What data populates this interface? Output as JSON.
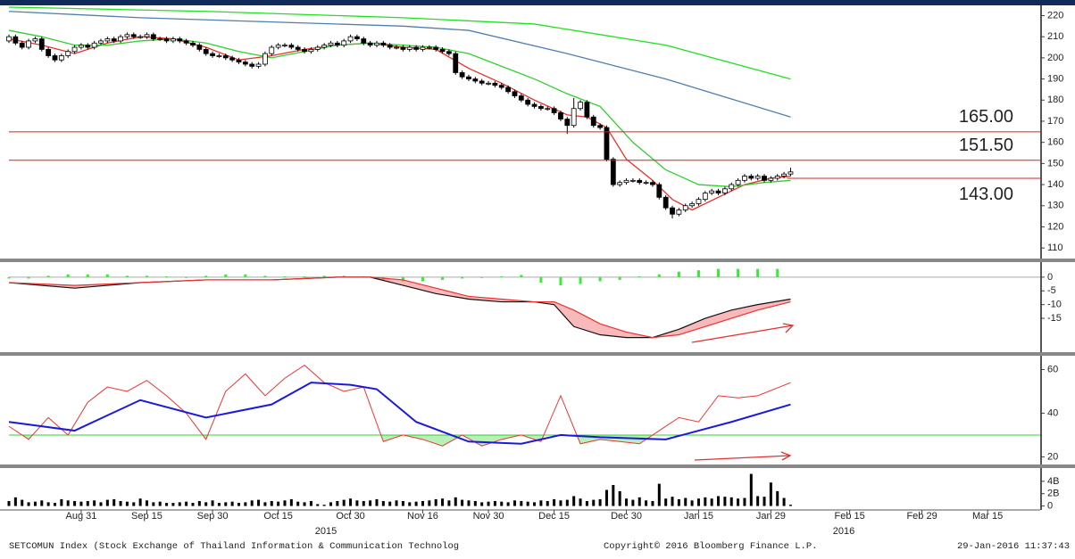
{
  "chart_data": [
    {
      "type": "candlestick",
      "color": "#000000",
      "xlim": [
        0,
        157
      ],
      "xticks": [
        {
          "value": 11,
          "label": "Aug 31"
        },
        {
          "value": 21,
          "label": "Sep 15"
        },
        {
          "value": 31,
          "label": "Sep 30"
        },
        {
          "value": 41,
          "label": "Oct 15"
        },
        {
          "value": 52,
          "label": "Oct 30"
        },
        {
          "value": 63,
          "label": "Nov 16"
        },
        {
          "value": 73,
          "label": "Nov 30"
        },
        {
          "value": 83,
          "label": "Dec 15"
        },
        {
          "value": 94,
          "label": "Dec 30"
        },
        {
          "value": 105,
          "label": "Jan 15"
        },
        {
          "value": 116,
          "label": "Jan 29"
        },
        {
          "value": 128,
          "label": "Feb 15"
        },
        {
          "value": 139,
          "label": "Feb 29"
        },
        {
          "value": 149,
          "label": "Mar 15"
        }
      ],
      "year_labels": [
        "2015",
        "2016"
      ],
      "ylim": [
        105,
        224
      ],
      "yticks": [
        110,
        120,
        130,
        140,
        150,
        160,
        170,
        180,
        190,
        200,
        210,
        220
      ],
      "open": [
        208,
        210,
        207,
        205,
        208,
        209,
        204,
        201,
        199,
        201,
        203,
        205,
        206,
        205,
        207,
        208,
        209,
        208,
        210,
        211,
        210,
        210,
        211,
        209,
        209,
        208,
        209,
        208,
        207,
        206,
        204,
        202,
        201,
        201,
        200,
        199,
        198,
        197,
        196,
        197,
        202,
        205,
        206,
        206,
        205,
        204,
        203,
        204,
        205,
        206,
        207,
        206,
        208,
        210,
        209,
        207,
        206,
        207,
        206,
        205,
        205,
        204,
        205,
        204,
        205,
        205,
        204,
        203,
        202,
        193,
        191,
        190,
        189,
        188,
        188,
        187,
        186,
        184,
        182,
        180,
        178,
        177,
        176,
        176,
        174,
        171,
        168,
        176,
        179,
        172,
        168,
        167,
        152,
        140,
        141,
        142,
        142,
        141,
        141,
        140,
        134,
        129,
        126,
        128,
        130,
        131,
        133,
        136,
        137,
        136,
        138,
        140,
        142,
        144,
        143,
        144,
        142,
        143,
        144,
        145
      ],
      "high": [
        211,
        211,
        208,
        209,
        210,
        210,
        205,
        202,
        202,
        204,
        206,
        207,
        207,
        208,
        209,
        210,
        210,
        211,
        212,
        212,
        211,
        212,
        212,
        210,
        210,
        210,
        210,
        209,
        208,
        207,
        205,
        203,
        202,
        202,
        201,
        200,
        199,
        198,
        198,
        203,
        206,
        207,
        207,
        207,
        206,
        205,
        205,
        206,
        207,
        208,
        208,
        209,
        211,
        211,
        210,
        208,
        208,
        208,
        207,
        206,
        206,
        206,
        206,
        206,
        206,
        206,
        205,
        204,
        203,
        194,
        192,
        191,
        190,
        189,
        189,
        188,
        187,
        185,
        183,
        181,
        179,
        178,
        177,
        177,
        175,
        172,
        181,
        180,
        180,
        173,
        169,
        168,
        153,
        142,
        143,
        143,
        143,
        142,
        142,
        141,
        135,
        130,
        129,
        131,
        132,
        134,
        137,
        138,
        138,
        139,
        141,
        143,
        145,
        145,
        145,
        145,
        144,
        145,
        146,
        148
      ],
      "low": [
        207,
        206,
        204,
        204,
        207,
        203,
        200,
        198,
        198,
        200,
        202,
        204,
        204,
        204,
        206,
        207,
        207,
        207,
        209,
        209,
        209,
        209,
        208,
        208,
        207,
        207,
        207,
        206,
        205,
        203,
        201,
        200,
        200,
        199,
        198,
        197,
        196,
        195,
        195,
        196,
        201,
        204,
        205,
        204,
        203,
        202,
        202,
        203,
        204,
        205,
        205,
        205,
        207,
        208,
        206,
        205,
        205,
        205,
        204,
        204,
        203,
        203,
        203,
        203,
        204,
        203,
        202,
        201,
        192,
        190,
        189,
        188,
        187,
        187,
        186,
        185,
        183,
        181,
        179,
        177,
        176,
        175,
        175,
        173,
        170,
        164,
        167,
        175,
        171,
        167,
        166,
        151,
        139,
        139,
        140,
        141,
        140,
        140,
        139,
        133,
        128,
        124,
        125,
        127,
        129,
        130,
        132,
        135,
        135,
        135,
        137,
        139,
        141,
        142,
        142,
        141,
        141,
        142,
        143,
        144
      ],
      "close": [
        210,
        207,
        205,
        208,
        209,
        204,
        201,
        199,
        201,
        203,
        205,
        206,
        205,
        207,
        208,
        209,
        208,
        210,
        211,
        210,
        210,
        211,
        209,
        209,
        208,
        209,
        208,
        207,
        206,
        204,
        202,
        201,
        201,
        200,
        199,
        198,
        197,
        196,
        197,
        202,
        205,
        206,
        206,
        205,
        204,
        203,
        204,
        205,
        206,
        207,
        206,
        208,
        210,
        209,
        207,
        206,
        207,
        206,
        205,
        205,
        204,
        205,
        204,
        205,
        205,
        204,
        203,
        202,
        193,
        191,
        190,
        189,
        188,
        188,
        187,
        186,
        184,
        182,
        180,
        178,
        177,
        176,
        176,
        174,
        171,
        168,
        176,
        179,
        172,
        168,
        167,
        152,
        140,
        141,
        142,
        142,
        141,
        141,
        140,
        134,
        129,
        126,
        128,
        130,
        131,
        133,
        136,
        137,
        136,
        138,
        140,
        142,
        144,
        143,
        144,
        142,
        143,
        144,
        145,
        146
      ],
      "lines": [
        {
          "color": "#e8302a",
          "x": [
            0,
            5,
            10,
            15,
            20,
            25,
            30,
            35,
            40,
            45,
            50,
            55,
            60,
            65,
            70,
            75,
            80,
            85,
            88,
            91,
            94,
            98,
            101,
            104,
            108,
            112,
            116,
            119
          ],
          "values": [
            209,
            206,
            202,
            207,
            210,
            209,
            205,
            199,
            201,
            204,
            206,
            207,
            205,
            204,
            195,
            188,
            180,
            173,
            172,
            167,
            152,
            142,
            133,
            128,
            134,
            140,
            143,
            144
          ]
        },
        {
          "color": "#2fcf2f",
          "x": [
            0,
            5,
            10,
            15,
            20,
            25,
            30,
            35,
            40,
            45,
            50,
            55,
            60,
            65,
            70,
            75,
            80,
            85,
            90,
            95,
            100,
            105,
            110,
            115,
            119
          ],
          "values": [
            213,
            210,
            206,
            206,
            208,
            209,
            207,
            203,
            200,
            203,
            206,
            207,
            206,
            205,
            202,
            196,
            190,
            183,
            177,
            160,
            147,
            140,
            139,
            141,
            142
          ]
        },
        {
          "color": "#4f7fad",
          "x": [
            0,
            20,
            40,
            60,
            70,
            85,
            100,
            119
          ],
          "values": [
            222,
            219,
            217,
            215,
            213,
            202,
            190,
            172
          ]
        },
        {
          "color": "#22e022",
          "x": [
            0,
            30,
            60,
            80,
            100,
            119
          ],
          "values": [
            224,
            222,
            219,
            216,
            206,
            190
          ]
        }
      ],
      "levels": {
        "color": "#d42020",
        "values": [
          165,
          151.5,
          143
        ],
        "value_labels": [
          "165.00",
          "151.50",
          "143.00"
        ]
      }
    },
    {
      "type": "macd",
      "ylim": [
        -27,
        4.5
      ],
      "yticks": [
        0,
        -5,
        -10,
        -15
      ],
      "reference_line": 0,
      "series": [
        {
          "color": "#111111",
          "x": [
            0,
            10,
            20,
            30,
            40,
            50,
            55,
            60,
            65,
            70,
            75,
            80,
            83,
            86,
            90,
            94,
            98,
            102,
            106,
            110,
            114,
            119
          ],
          "values": [
            -2,
            -4,
            -2,
            -1,
            -1,
            0,
            0,
            -3,
            -6,
            -8,
            -9,
            -9,
            -10,
            -18,
            -21,
            -22,
            -22,
            -19,
            -15,
            -12,
            -10,
            -8
          ]
        },
        {
          "color": "#ee3030",
          "x": [
            0,
            10,
            20,
            30,
            40,
            50,
            55,
            60,
            65,
            70,
            75,
            80,
            83,
            86,
            90,
            94,
            98,
            102,
            106,
            110,
            114,
            119
          ],
          "values": [
            -2,
            -3,
            -2,
            -1,
            -1,
            0,
            0,
            -1,
            -4,
            -7,
            -8,
            -9,
            -9,
            -12,
            -17,
            -20,
            -22,
            -21,
            -18,
            -15,
            -12,
            -9
          ]
        }
      ],
      "histogram": {
        "color": "#33ee33",
        "x": [
          0,
          3,
          6,
          9,
          12,
          15,
          18,
          21,
          24,
          27,
          30,
          33,
          36,
          39,
          42,
          45,
          48,
          51,
          54,
          57,
          60,
          63,
          66,
          69,
          72,
          75,
          78,
          81,
          84,
          87,
          90,
          93,
          96,
          99,
          102,
          105,
          108,
          111,
          114,
          117
        ],
        "values": [
          -0.5,
          -0.5,
          0.5,
          1,
          1,
          1,
          0.5,
          0.5,
          0.3,
          -0.3,
          0.5,
          1,
          1,
          0.5,
          0.3,
          0.3,
          0.5,
          0.5,
          0.3,
          -1,
          -1.5,
          -1.5,
          -1,
          -0.5,
          -0.3,
          0.3,
          0.8,
          -2,
          -3,
          -2.5,
          -1.5,
          -1,
          0.3,
          1,
          2,
          2.5,
          3,
          3,
          3,
          3
        ]
      }
    },
    {
      "type": "rsi",
      "ylim": [
        16.5,
        65.5
      ],
      "yticks": [
        20,
        40,
        60
      ],
      "reference_line": 30,
      "reference_color": "#33cc33",
      "series": [
        {
          "color": "#ee3333",
          "x": [
            0,
            3,
            6,
            9,
            12,
            15,
            18,
            21,
            24,
            27,
            30,
            33,
            36,
            39,
            42,
            45,
            48,
            51,
            54,
            57,
            60,
            63,
            66,
            69,
            72,
            75,
            78,
            81,
            84,
            87,
            90,
            93,
            96,
            99,
            102,
            105,
            108,
            111,
            114,
            119
          ],
          "values": [
            34,
            28,
            38,
            30,
            45,
            52,
            50,
            55,
            48,
            40,
            28,
            50,
            58,
            48,
            56,
            62,
            54,
            50,
            52,
            27,
            30,
            28,
            25,
            30,
            25,
            28,
            30,
            27,
            48,
            26,
            28,
            27,
            26,
            32,
            38,
            36,
            48,
            47,
            48,
            54
          ]
        },
        {
          "color": "#1a1adc",
          "x": [
            0,
            10,
            20,
            30,
            40,
            46,
            52,
            56,
            62,
            70,
            78,
            84,
            90,
            100,
            110,
            119
          ],
          "values": [
            36,
            32,
            46,
            38,
            44,
            54,
            53,
            51,
            36,
            27,
            26,
            30,
            29,
            28,
            36,
            44
          ]
        }
      ]
    },
    {
      "type": "volume",
      "color": "#000000",
      "ylim": [
        -500000000.0,
        6000000000.0
      ],
      "yticks": [
        0,
        {
          "value": 2000000000.0,
          "label": "2B"
        },
        {
          "value": 4000000000.0,
          "label": "4B"
        }
      ],
      "values": [
        800000000.0,
        1400000000.0,
        1000000000.0,
        600000000.0,
        700000000.0,
        900000000.0,
        600000000.0,
        500000000.0,
        1100000000.0,
        900000000.0,
        800000000.0,
        700000000.0,
        800000000.0,
        900000000.0,
        600000000.0,
        1000000000.0,
        1100000000.0,
        800000000.0,
        700000000.0,
        600000000.0,
        1200000000.0,
        900000000.0,
        600000000.0,
        700000000.0,
        500000000.0,
        500000000.0,
        600000000.0,
        700000000.0,
        500000000.0,
        800000000.0,
        600000000.0,
        900000000.0,
        500000000.0,
        600000000.0,
        700000000.0,
        500000000.0,
        600000000.0,
        900000000.0,
        1000000000.0,
        600000000.0,
        800000000.0,
        700000000.0,
        900000000.0,
        1100000000.0,
        700000000.0,
        600000000.0,
        800000000.0,
        300000000.0,
        200000000.0,
        600000000.0,
        800000000.0,
        1000000000.0,
        1200000000.0,
        900000000.0,
        800000000.0,
        900000000.0,
        1100000000.0,
        800000000.0,
        700000000.0,
        900000000.0,
        800000000.0,
        600000000.0,
        700000000.0,
        800000000.0,
        900000000.0,
        1100000000.0,
        1200000000.0,
        900000000.0,
        1400000000.0,
        1000000000.0,
        900000000.0,
        800000000.0,
        600000000.0,
        700000000.0,
        800000000.0,
        700000000.0,
        600000000.0,
        900000000.0,
        800000000.0,
        700000000.0,
        600000000.0,
        900000000.0,
        800000000.0,
        1100000000.0,
        900000000.0,
        1000000000.0,
        1600000000.0,
        1200000000.0,
        800000000.0,
        1000000000.0,
        1100000000.0,
        2600000000.0,
        3400000000.0,
        2400000000.0,
        1200000000.0,
        1000000000.0,
        1400000000.0,
        900000000.0,
        800000000.0,
        3600000000.0,
        1200000000.0,
        1500000000.0,
        1100000000.0,
        1300000000.0,
        900000000.0,
        1200000000.0,
        1400000000.0,
        1200000000.0,
        1600000000.0,
        1500000000.0,
        1400000000.0,
        1200000000.0,
        1300000000.0,
        5200000000.0,
        1600000000.0,
        1500000000.0,
        3800000000.0,
        2400000000.0,
        1300000000.0,
        200000000.0
      ]
    }
  ],
  "footer": {
    "left": "SETCOMUN Index (Stock Exchange of Thailand Information & Communication Technolog",
    "center": "Copyright© 2016 Bloomberg Finance L.P.",
    "right": "29-Jan-2016 11:37:43"
  }
}
